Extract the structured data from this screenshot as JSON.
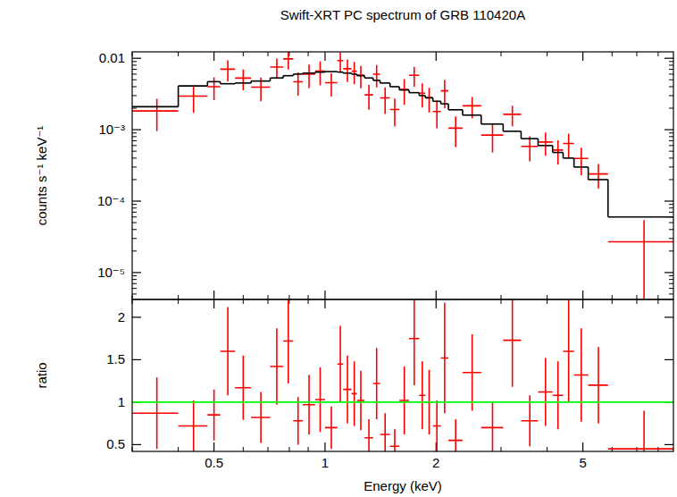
{
  "chart_data": [
    {
      "type": "errorbar",
      "title": "Swift-XRT PC spectrum of GRB 110420A",
      "ylabel": "counts s⁻¹ keV⁻¹",
      "log": true,
      "grid": false,
      "tick_labels": "y",
      "xlim": [
        0.3,
        8.8
      ],
      "ylim": [
        4.2e-06,
        0.0123
      ],
      "xticks": [
        0.5,
        1,
        2,
        5
      ],
      "yticks": [
        0.01,
        {
          "value": 0.001,
          "label": "10⁻³"
        },
        {
          "value": 0.0001,
          "label": "10⁻⁴"
        },
        {
          "value": 1e-05,
          "label": "10⁻⁵"
        }
      ],
      "bins": [
        0.3,
        0.4,
        0.48,
        0.52,
        0.57,
        0.63,
        0.71,
        0.77,
        0.82,
        0.87,
        0.94,
        1.0,
        1.08,
        1.12,
        1.18,
        1.22,
        1.28,
        1.35,
        1.41,
        1.5,
        1.59,
        1.69,
        1.8,
        1.87,
        1.96,
        2.06,
        2.16,
        2.36,
        2.65,
        3.04,
        3.4,
        3.78,
        4.14,
        4.42,
        4.73,
        5.17,
        5.85,
        8.8
      ],
      "series": [
        {
          "type": "errorbar",
          "color": "#ff0000",
          "marker": "cross",
          "values": [
            0.00183,
            0.00295,
            0.004,
            0.00704,
            0.00527,
            0.00394,
            0.00753,
            0.0098,
            0.00468,
            0.00601,
            0.00659,
            0.00455,
            0.00928,
            0.00713,
            0.0066,
            0.00581,
            0.00307,
            0.00598,
            0.00279,
            0.00192,
            0.00367,
            0.00578,
            0.00324,
            0.0028,
            0.0018,
            0.0035,
            0.00105,
            0.00216,
            0.00084,
            0.00164,
            0.000585,
            0.000672,
            0.000518,
            0.00064,
            0.000396,
            0.00024,
            2.7e-05
          ],
          "errors": [
            0.00088,
            0.00123,
            0.00141,
            0.00229,
            0.00171,
            0.00144,
            0.00239,
            0.00285,
            0.00168,
            0.00217,
            0.00243,
            0.00163,
            0.00288,
            0.00248,
            0.00228,
            0.002,
            0.00117,
            0.00206,
            0.00113,
            0.0008,
            0.00144,
            0.00182,
            0.0012,
            0.00106,
            0.00075,
            0.0015,
            0.00048,
            0.00072,
            0.00036,
            0.00052,
            0.000225,
            0.00024,
            0.000192,
            0.00024,
            0.000165,
            9e-05,
            2.7e-05
          ]
        },
        {
          "type": "step",
          "color": "#000000",
          "line_style": "solid",
          "values": [
            0.0021,
            0.0041,
            0.0047,
            0.0044,
            0.0045,
            0.0048,
            0.0053,
            0.0057,
            0.006,
            0.0062,
            0.0064,
            0.0065,
            0.0064,
            0.0062,
            0.006,
            0.0057,
            0.0053,
            0.0049,
            0.0045,
            0.004,
            0.0036,
            0.0033,
            0.003,
            0.0028,
            0.0025,
            0.0023,
            0.0019,
            0.0016,
            0.0012,
            0.00095,
            0.00075,
            0.0006,
            0.00048,
            0.0004,
            0.0003,
            0.0002,
            6e-05
          ]
        }
      ]
    },
    {
      "type": "errorbar",
      "xlabel": "Energy (keV)",
      "ylabel": "ratio",
      "log": "x",
      "grid": false,
      "xlim": [
        0.3,
        8.8
      ],
      "ylim": [
        0.42,
        2.21
      ],
      "xticks": [
        0.5,
        1,
        2,
        5
      ],
      "yticks": [
        0.5,
        1,
        1.5,
        2
      ],
      "bins": [
        0.3,
        0.4,
        0.48,
        0.52,
        0.57,
        0.63,
        0.71,
        0.77,
        0.82,
        0.87,
        0.94,
        1.0,
        1.08,
        1.12,
        1.18,
        1.22,
        1.28,
        1.35,
        1.41,
        1.5,
        1.59,
        1.69,
        1.8,
        1.87,
        1.96,
        2.06,
        2.16,
        2.36,
        2.65,
        3.04,
        3.4,
        3.78,
        4.14,
        4.42,
        4.73,
        5.17,
        5.85,
        8.8
      ],
      "series": [
        {
          "type": "errorbar",
          "color": "#ff0000",
          "marker": "cross",
          "values": [
            0.87,
            0.72,
            0.85,
            1.6,
            1.17,
            0.82,
            1.42,
            1.72,
            0.78,
            0.97,
            1.03,
            0.7,
            1.45,
            1.15,
            1.1,
            1.02,
            0.58,
            1.22,
            0.62,
            0.48,
            1.02,
            1.75,
            1.08,
            1.0,
            0.72,
            1.52,
            0.55,
            1.35,
            0.7,
            1.73,
            0.78,
            1.12,
            1.08,
            1.6,
            1.32,
            1.2,
            0.45
          ],
          "errors": [
            0.42,
            0.3,
            0.3,
            0.52,
            0.38,
            0.3,
            0.45,
            0.5,
            0.28,
            0.35,
            0.38,
            0.25,
            0.45,
            0.4,
            0.38,
            0.35,
            0.22,
            0.42,
            0.25,
            0.2,
            0.4,
            0.55,
            0.4,
            0.38,
            0.3,
            0.65,
            0.25,
            0.45,
            0.3,
            0.55,
            0.3,
            0.4,
            0.4,
            0.6,
            0.55,
            0.45,
            0.45
          ]
        },
        {
          "type": "hline",
          "color": "#00ff00",
          "values": [
            1
          ]
        }
      ]
    }
  ]
}
